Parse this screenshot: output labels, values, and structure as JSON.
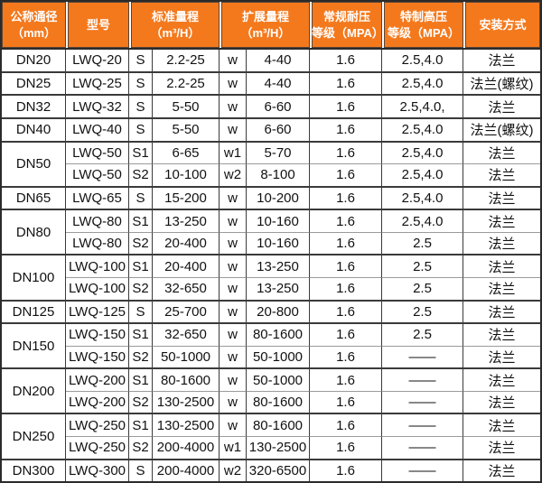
{
  "colors": {
    "header_bg": "#f4791d",
    "header_text": "#ffffff",
    "grid_dark": "#3a3a3a",
    "grid_light": "#9b9b9b",
    "outer_border": "#2b2b2b",
    "cell_text": "#111111"
  },
  "table": {
    "columns": [
      {
        "line1": "公称通径",
        "line2": "（mm）"
      },
      {
        "line1": "型号",
        "line2": ""
      },
      {
        "line1": "标准量程",
        "line2": "（m³/H）"
      },
      {
        "line1": "扩展量程",
        "line2": "（m³/H）"
      },
      {
        "line1": "常规耐压",
        "line2": "等级（MPA）"
      },
      {
        "line1": "特制高压",
        "line2": "等级（MPA）"
      },
      {
        "line1": "安装方式",
        "line2": ""
      }
    ],
    "groups": [
      {
        "dn": "DN20",
        "rows": [
          [
            "LWQ-20",
            "S",
            "2.2-25",
            "w",
            "4-40",
            "1.6",
            "2.5,4.0",
            "法兰"
          ]
        ]
      },
      {
        "dn": "DN25",
        "rows": [
          [
            "LWQ-25",
            "S",
            "2.2-25",
            "w",
            "4-40",
            "1.6",
            "2.5,4.0",
            "法兰(螺纹)"
          ]
        ]
      },
      {
        "dn": "DN32",
        "rows": [
          [
            "LWQ-32",
            "S",
            "5-50",
            "w",
            "6-60",
            "1.6",
            "2.5,4.0,",
            "法兰"
          ]
        ]
      },
      {
        "dn": "DN40",
        "rows": [
          [
            "LWQ-40",
            "S",
            "5-50",
            "w",
            "6-60",
            "1.6",
            "2.5,4.0",
            "法兰(螺纹)"
          ]
        ]
      },
      {
        "dn": "DN50",
        "rows": [
          [
            "LWQ-50",
            "S1",
            "6-65",
            "w1",
            "5-70",
            "1.6",
            "2.5,4.0",
            "法兰"
          ],
          [
            "LWQ-50",
            "S2",
            "10-100",
            "w2",
            "8-100",
            "1.6",
            "2.5,4.0",
            "法兰"
          ]
        ]
      },
      {
        "dn": "DN65",
        "rows": [
          [
            "LWQ-65",
            "S",
            "15-200",
            "w",
            "10-200",
            "1.6",
            "2.5,4.0",
            "法兰"
          ]
        ]
      },
      {
        "dn": "DN80",
        "rows": [
          [
            "LWQ-80",
            "S1",
            "13-250",
            "w",
            "10-160",
            "1.6",
            "2.5,4.0",
            "法兰"
          ],
          [
            "LWQ-80",
            "S2",
            "20-400",
            "w",
            "10-160",
            "1.6",
            "2.5",
            "法兰"
          ]
        ]
      },
      {
        "dn": "DN100",
        "rows": [
          [
            "LWQ-100",
            "S1",
            "20-400",
            "w",
            "13-250",
            "1.6",
            "2.5",
            "法兰"
          ],
          [
            "LWQ-100",
            "S2",
            "32-650",
            "w",
            "13-250",
            "1.6",
            "2.5",
            "法兰"
          ]
        ]
      },
      {
        "dn": "DN125",
        "rows": [
          [
            "LWQ-125",
            "S",
            "25-700",
            "w",
            "20-800",
            "1.6",
            "2.5",
            "法兰"
          ]
        ]
      },
      {
        "dn": "DN150",
        "rows": [
          [
            "LWQ-150",
            "S1",
            "32-650",
            "w",
            "80-1600",
            "1.6",
            "2.5",
            "法兰"
          ],
          [
            "LWQ-150",
            "S2",
            "50-1000",
            "w",
            "50-1000",
            "1.6",
            "——",
            "法兰"
          ]
        ]
      },
      {
        "dn": "DN200",
        "rows": [
          [
            "LWQ-200",
            "S1",
            "80-1600",
            "w",
            "50-1000",
            "1.6",
            "——",
            "法兰"
          ],
          [
            "LWQ-200",
            "S2",
            "130-2500",
            "w",
            "80-1600",
            "1.6",
            "——",
            "法兰"
          ]
        ]
      },
      {
        "dn": "DN250",
        "rows": [
          [
            "LWQ-250",
            "S1",
            "130-2500",
            "w",
            "80-1600",
            "1.6",
            "——",
            "法兰"
          ],
          [
            "LWQ-250",
            "S2",
            "200-4000",
            "w1",
            "130-2500",
            "1.6",
            "——",
            "法兰"
          ]
        ]
      },
      {
        "dn": "DN300",
        "rows": [
          [
            "LWQ-300",
            "S",
            "200-4000",
            "w2",
            "320-6500",
            "1.6",
            "——",
            "法兰"
          ]
        ]
      }
    ]
  }
}
